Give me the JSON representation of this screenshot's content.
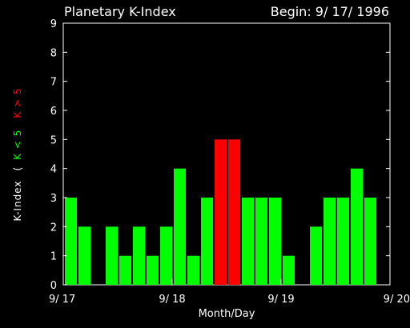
{
  "chart_data": {
    "type": "bar",
    "title": "Planetary K-Index",
    "begin_label": "Begin: 9/ 17/ 1996",
    "xlabel": "Month/Day",
    "ylabel": "K-Index",
    "ylabel_open": "(",
    "ylabel_green": "K < 5",
    "ylabel_red": "K > 5",
    "ylim": [
      0,
      9
    ],
    "yticks": [
      "0",
      "1",
      "2",
      "3",
      "4",
      "5",
      "6",
      "7",
      "8",
      "9"
    ],
    "xticks": [
      "9/ 17",
      "9/ 18",
      "9/ 19",
      "9/ 20"
    ],
    "threshold": 5,
    "values": [
      3,
      2,
      0,
      2,
      1,
      2,
      1,
      2,
      4,
      1,
      3,
      5,
      5,
      3,
      3,
      3,
      1,
      0,
      2,
      3,
      3,
      4,
      3,
      0
    ],
    "colors": {
      "low": "#00ff00",
      "high": "#ff0000",
      "axes": "#ffffff",
      "background": "#000000"
    },
    "grid": false,
    "legend": "none"
  }
}
